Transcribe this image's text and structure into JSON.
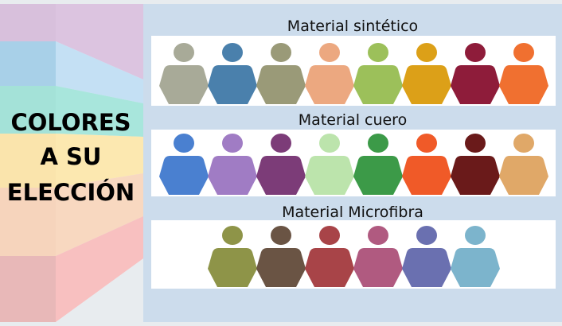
{
  "slogan": {
    "line1": "COLORES",
    "line2": "A SU",
    "line3": "ELECCIÓN"
  },
  "stripe_colors": [
    "#dcc4e0",
    "#c4e0f4",
    "#a8e6dc",
    "#fce8b0",
    "#f8d8c0",
    "#f8c0c0"
  ],
  "sections": [
    {
      "title": "Material sintético",
      "swatches": [
        "#a8aa98",
        "#4a80ac",
        "#9a9a78",
        "#eca880",
        "#9cc05a",
        "#dca018",
        "#8e1c3a",
        "#f07030"
      ]
    },
    {
      "title": "Material cuero",
      "swatches": [
        "#4a80d0",
        "#a07cc4",
        "#7c3c78",
        "#bce4ac",
        "#3c9a48",
        "#f05a28",
        "#6a1a1a",
        "#e0a868"
      ]
    },
    {
      "title": "Material Microfibra",
      "swatches": [
        "#8e9448",
        "#6a5444",
        "#a84448",
        "#b05a80",
        "#6a70b0",
        "#7cb4cc"
      ]
    }
  ]
}
